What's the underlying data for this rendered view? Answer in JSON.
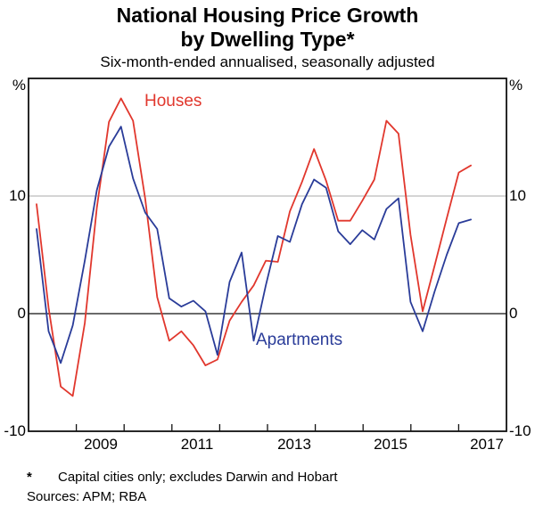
{
  "header": {
    "title_line1": "National Housing Price Growth",
    "title_line2": "by Dwelling Type*",
    "subtitle": "Six-month-ended annualised, seasonally adjusted"
  },
  "chart_data": {
    "type": "line",
    "title": "National Housing Price Growth by Dwelling Type*",
    "subtitle": "Six-month-ended annualised, seasonally adjusted",
    "unit_left": "%",
    "unit_right": "%",
    "ylim": [
      -10,
      20
    ],
    "yticks": [
      {
        "value": 10,
        "label": "10"
      },
      {
        "value": 0,
        "label": "0"
      },
      {
        "value": -10,
        "label": "-10"
      }
    ],
    "grid_values": [
      10
    ],
    "zero_line": true,
    "legend_position": "inline-annotations",
    "x_year_labels": [
      "2009",
      "2011",
      "2013",
      "2015",
      "2017"
    ],
    "x": [
      "Mar 2008",
      "Jun 2008",
      "Sep 2008",
      "Dec 2008",
      "Mar 2009",
      "Jun 2009",
      "Sep 2009",
      "Dec 2009",
      "Mar 2010",
      "Jun 2010",
      "Sep 2010",
      "Dec 2010",
      "Mar 2011",
      "Jun 2011",
      "Sep 2011",
      "Dec 2011",
      "Mar 2012",
      "Jun 2012",
      "Sep 2012",
      "Dec 2012",
      "Mar 2013",
      "Jun 2013",
      "Sep 2013",
      "Dec 2013",
      "Mar 2014",
      "Jun 2014",
      "Sep 2014",
      "Dec 2014",
      "Mar 2015",
      "Jun 2015",
      "Sep 2015",
      "Dec 2015",
      "Mar 2016",
      "Jun 2016",
      "Sep 2016",
      "Dec 2016",
      "Mar 2017"
    ],
    "series": [
      {
        "name": "Houses",
        "color": "#e1372d",
        "values": [
          9.3,
          0.5,
          -6.2,
          -7.0,
          -0.8,
          9.0,
          16.3,
          18.3,
          16.4,
          9.8,
          1.4,
          -2.3,
          -1.5,
          -2.7,
          -4.4,
          -3.9,
          -0.6,
          1.0,
          2.4,
          4.5,
          4.4,
          8.7,
          11.2,
          14.0,
          11.3,
          7.9,
          7.9,
          9.6,
          11.4,
          16.4,
          15.3,
          6.7,
          0.2,
          4.1,
          8.1,
          12.0,
          12.6
        ]
      },
      {
        "name": "Apartments",
        "color": "#2a3c99",
        "values": [
          7.2,
          -1.5,
          -4.2,
          -1.0,
          4.5,
          10.5,
          14.2,
          15.9,
          11.5,
          8.6,
          7.2,
          1.3,
          0.6,
          1.1,
          0.2,
          -3.5,
          2.7,
          5.2,
          -2.3,
          2.4,
          6.6,
          6.1,
          9.3,
          11.4,
          10.7,
          7.0,
          5.9,
          7.1,
          6.3,
          8.9,
          9.8,
          1.0,
          -1.5,
          1.9,
          5.0,
          7.7,
          8.0
        ]
      }
    ],
    "axis_color": "#111111",
    "gridline_color": "#ababab"
  },
  "footer": {
    "asterisk": "*",
    "footnote": "Capital cities only; excludes Darwin and Hobart",
    "sources": "Sources: APM; RBA"
  }
}
